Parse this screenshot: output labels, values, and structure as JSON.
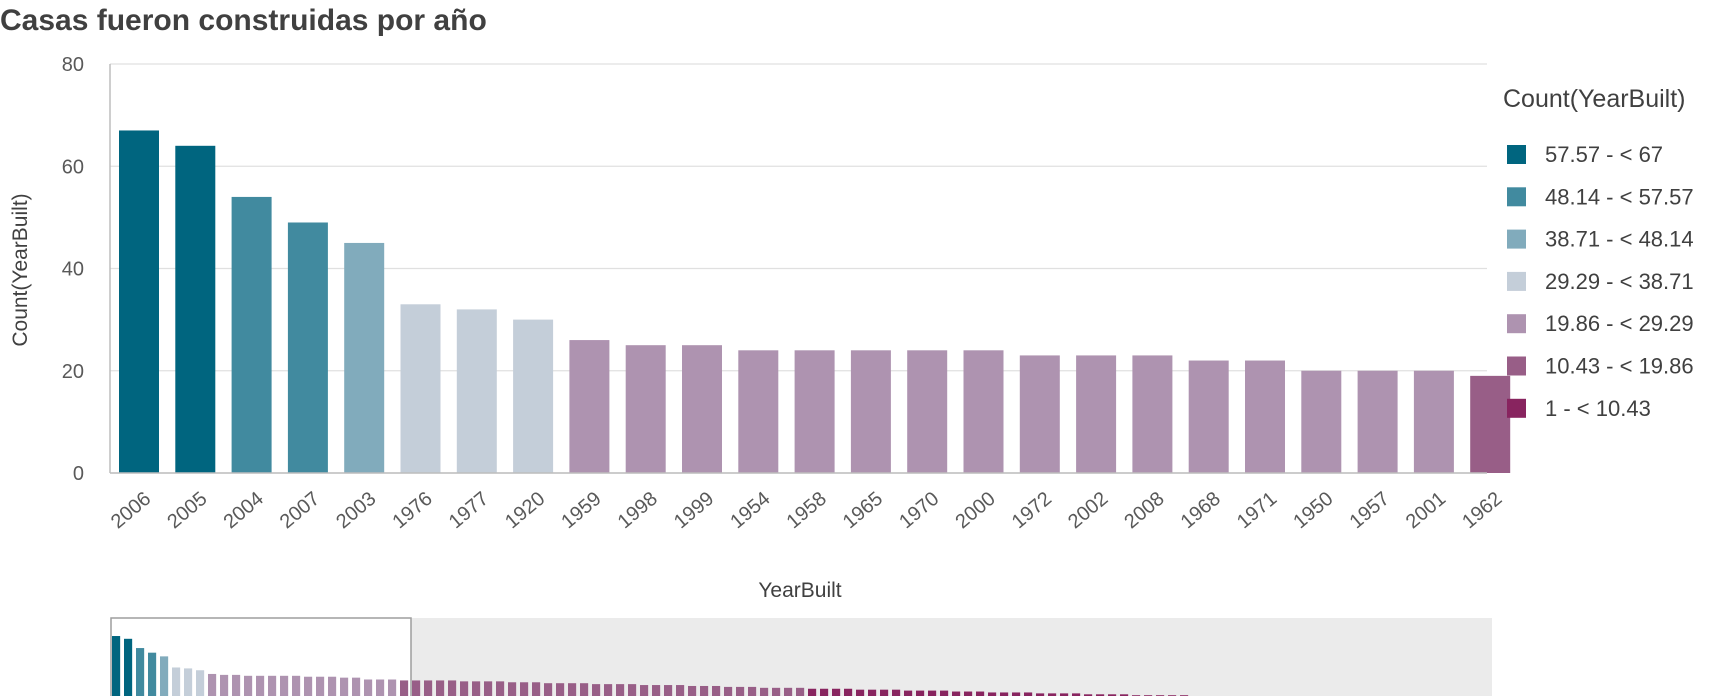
{
  "title": "Casas fueron construidas por año",
  "colors": {
    "bin1": "#00657f",
    "bin2": "#418a9f",
    "bin3": "#81abbc",
    "bin4": "#c4ced9",
    "bin5": "#ae93b0",
    "bin6": "#985e87",
    "bin7": "#88245f"
  },
  "chart_data": {
    "type": "bar",
    "xlabel": "YearBuilt",
    "ylabel": "Count(YearBuilt)",
    "ylim": [
      0,
      80
    ],
    "yticks": [
      0,
      20,
      40,
      60,
      80
    ],
    "grid": true,
    "legend_position": "right",
    "categories": [
      "2006",
      "2005",
      "2004",
      "2007",
      "2003",
      "1976",
      "1977",
      "1920",
      "1959",
      "1998",
      "1999",
      "1954",
      "1958",
      "1965",
      "1970",
      "2000",
      "1972",
      "2002",
      "2008",
      "1968",
      "1971",
      "1950",
      "1957",
      "2001",
      "1962"
    ],
    "values": [
      67,
      64,
      54,
      49,
      45,
      33,
      32,
      30,
      26,
      25,
      25,
      24,
      24,
      24,
      24,
      24,
      23,
      23,
      23,
      22,
      22,
      20,
      20,
      20,
      19
    ],
    "legend": {
      "title": "Count(YearBuilt)",
      "items": [
        {
          "label": "57.57 - < 67",
          "color": "#00657f"
        },
        {
          "label": "48.14 - < 57.57",
          "color": "#418a9f"
        },
        {
          "label": "38.71 - < 48.14",
          "color": "#81abbc"
        },
        {
          "label": "29.29 - < 38.71",
          "color": "#c4ced9"
        },
        {
          "label": "19.86 - < 29.29",
          "color": "#ae93b0"
        },
        {
          "label": "10.43 - < 19.86",
          "color": "#985e87"
        },
        {
          "label": "1 - < 10.43",
          "color": "#88245f"
        }
      ]
    },
    "overview": {
      "values": [
        67,
        64,
        54,
        49,
        45,
        33,
        32,
        30,
        26,
        25,
        25,
        24,
        24,
        24,
        24,
        24,
        23,
        23,
        23,
        22,
        22,
        20,
        20,
        20,
        19,
        19,
        19,
        19,
        19,
        18,
        18,
        18,
        18,
        17,
        17,
        17,
        16,
        16,
        16,
        16,
        15,
        15,
        15,
        15,
        14,
        14,
        14,
        14,
        13,
        13,
        13,
        12,
        12,
        12,
        11,
        11,
        11,
        11,
        10,
        10,
        10,
        10,
        9,
        9,
        9,
        9,
        8,
        8,
        8,
        8,
        7,
        7,
        7,
        6,
        6,
        6,
        6,
        5,
        5,
        5,
        5,
        4,
        4,
        4,
        4,
        3,
        3,
        3,
        3,
        3,
        2,
        2,
        2,
        2,
        2,
        2,
        1,
        1,
        1,
        1,
        1,
        1,
        1,
        1,
        1,
        1,
        1,
        1,
        1,
        1,
        1,
        1
      ],
      "visible_count": 25
    }
  }
}
